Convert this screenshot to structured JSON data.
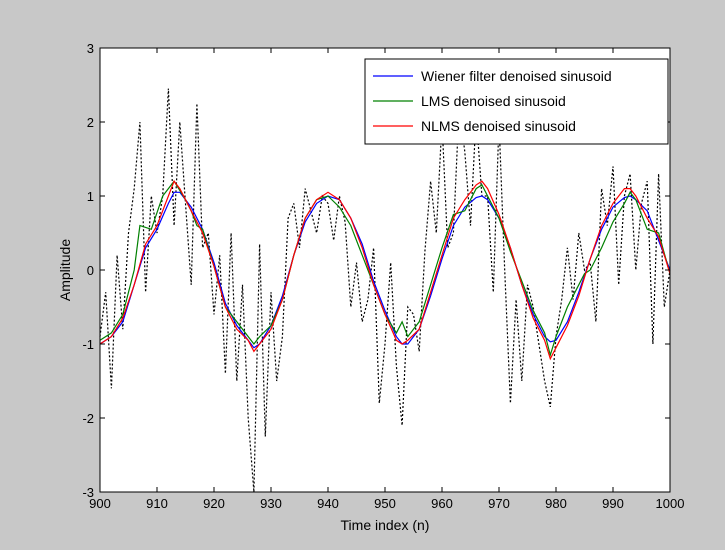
{
  "colors": {
    "figure_bg": "#c8c8c8",
    "axes_bg": "#ffffff",
    "noisy": "#000000",
    "wiener": "#0000ff",
    "lms": "#008000",
    "nlms": "#ff0000"
  },
  "chart_data": {
    "type": "line",
    "title": "",
    "xlabel": "Time index (n)",
    "ylabel": "Amplitude",
    "xlim": [
      900,
      1000
    ],
    "ylim": [
      -3,
      3
    ],
    "xticks": [
      900,
      910,
      920,
      930,
      940,
      950,
      960,
      970,
      980,
      990,
      1000
    ],
    "yticks": [
      -3,
      -2,
      -1,
      0,
      1,
      2,
      3
    ],
    "grid": false,
    "legend_position": "top-right",
    "series": [
      {
        "name": "Wiener filter denoised sinusoid",
        "color_key": "wiener",
        "style": "solid",
        "x": [
          900,
          902,
          904,
          906,
          908,
          910,
          912,
          913,
          914,
          916,
          918,
          920,
          922,
          924,
          926,
          927,
          928,
          930,
          932,
          934,
          936,
          938,
          940,
          942,
          944,
          946,
          948,
          950,
          952,
          953,
          954,
          956,
          958,
          960,
          962,
          964,
          966,
          967,
          968,
          970,
          972,
          974,
          976,
          978,
          979,
          980,
          982,
          984,
          986,
          988,
          990,
          992,
          993,
          994,
          996,
          998,
          1000
        ],
        "y": [
          -1.0,
          -0.9,
          -0.7,
          -0.2,
          0.3,
          0.55,
          0.9,
          1.05,
          1.05,
          0.85,
          0.55,
          0.1,
          -0.45,
          -0.75,
          -0.95,
          -1.05,
          -1.0,
          -0.75,
          -0.35,
          0.2,
          0.65,
          0.9,
          1.0,
          0.95,
          0.7,
          0.35,
          -0.15,
          -0.55,
          -0.9,
          -1.0,
          -1.0,
          -0.8,
          -0.35,
          0.15,
          0.6,
          0.85,
          0.98,
          1.0,
          0.95,
          0.7,
          0.3,
          -0.2,
          -0.6,
          -0.9,
          -0.97,
          -0.95,
          -0.7,
          -0.3,
          0.15,
          0.55,
          0.85,
          0.98,
          1.0,
          0.95,
          0.8,
          0.4,
          0.0
        ]
      },
      {
        "name": "LMS denoised sinusoid",
        "color_key": "lms",
        "style": "solid",
        "x": [
          900,
          902,
          904,
          906,
          907,
          909,
          911,
          913,
          915,
          916,
          917,
          918,
          920,
          922,
          924,
          926,
          927,
          928,
          930,
          932,
          934,
          936,
          938,
          940,
          942,
          944,
          946,
          948,
          950,
          952,
          953,
          954,
          956,
          958,
          960,
          962,
          964,
          966,
          967,
          968,
          970,
          972,
          974,
          976,
          978,
          979,
          980,
          982,
          984,
          985,
          986,
          988,
          990,
          992,
          993,
          994,
          996,
          998,
          1000
        ],
        "y": [
          -0.95,
          -0.85,
          -0.6,
          0.0,
          0.6,
          0.55,
          1.0,
          1.2,
          0.95,
          0.8,
          0.6,
          0.55,
          0.05,
          -0.5,
          -0.7,
          -0.9,
          -1.0,
          -0.9,
          -0.75,
          -0.4,
          0.2,
          0.7,
          0.95,
          1.0,
          0.85,
          0.6,
          0.2,
          -0.2,
          -0.6,
          -0.85,
          -0.7,
          -0.9,
          -0.7,
          -0.2,
          0.3,
          0.75,
          0.8,
          1.1,
          1.15,
          1.0,
          0.7,
          0.25,
          -0.15,
          -0.55,
          -0.85,
          -1.15,
          -0.9,
          -0.5,
          -0.2,
          -0.05,
          0.0,
          0.3,
          0.65,
          0.9,
          1.05,
          0.95,
          0.55,
          0.5,
          -0.05
        ]
      },
      {
        "name": "NLMS denoised sinusoid",
        "color_key": "nlms",
        "style": "solid",
        "x": [
          900,
          902,
          904,
          906,
          908,
          910,
          912,
          913,
          914,
          916,
          918,
          920,
          922,
          924,
          926,
          927,
          928,
          930,
          932,
          934,
          936,
          938,
          940,
          942,
          944,
          946,
          948,
          950,
          952,
          953,
          954,
          956,
          958,
          960,
          962,
          964,
          966,
          967,
          968,
          970,
          972,
          974,
          976,
          978,
          979,
          980,
          982,
          984,
          986,
          988,
          990,
          992,
          993,
          994,
          996,
          998,
          1000
        ],
        "y": [
          -1.0,
          -0.9,
          -0.65,
          -0.2,
          0.35,
          0.6,
          1.0,
          1.2,
          1.1,
          0.8,
          0.5,
          0.05,
          -0.5,
          -0.8,
          -0.95,
          -1.1,
          -1.0,
          -0.8,
          -0.4,
          0.2,
          0.7,
          0.95,
          1.05,
          0.95,
          0.7,
          0.3,
          -0.2,
          -0.6,
          -0.95,
          -1.0,
          -0.95,
          -0.8,
          -0.3,
          0.2,
          0.7,
          0.95,
          1.15,
          1.2,
          1.1,
          0.75,
          0.3,
          -0.2,
          -0.65,
          -0.95,
          -1.2,
          -1.05,
          -0.75,
          -0.35,
          0.15,
          0.6,
          0.9,
          1.1,
          1.1,
          1.0,
          0.7,
          0.45,
          -0.05
        ]
      },
      {
        "name": "",
        "color_key": "noisy",
        "style": "dotted",
        "x": [
          900,
          901,
          902,
          903,
          904,
          905,
          906,
          907,
          908,
          909,
          910,
          911,
          912,
          913,
          914,
          915,
          916,
          917,
          918,
          919,
          920,
          921,
          922,
          923,
          924,
          925,
          926,
          927,
          928,
          929,
          930,
          931,
          932,
          933,
          934,
          935,
          936,
          937,
          938,
          939,
          940,
          941,
          942,
          943,
          944,
          945,
          946,
          947,
          948,
          949,
          950,
          951,
          952,
          953,
          954,
          955,
          956,
          957,
          958,
          959,
          960,
          961,
          962,
          963,
          964,
          965,
          966,
          967,
          968,
          969,
          970,
          971,
          972,
          973,
          974,
          975,
          976,
          977,
          978,
          979,
          980,
          981,
          982,
          983,
          984,
          985,
          986,
          987,
          988,
          989,
          990,
          991,
          992,
          993,
          994,
          995,
          996,
          997,
          998,
          999,
          1000
        ],
        "y": [
          -0.9,
          -0.3,
          -1.6,
          0.2,
          -0.8,
          0.5,
          1.1,
          2.0,
          -0.3,
          1.0,
          0.5,
          1.0,
          2.45,
          0.6,
          2.0,
          0.9,
          -0.2,
          2.25,
          0.3,
          0.5,
          -0.6,
          0.2,
          -1.4,
          0.5,
          -1.5,
          -0.2,
          -2.0,
          -3.0,
          0.35,
          -2.25,
          -0.3,
          -1.5,
          -0.9,
          0.7,
          0.9,
          0.3,
          1.1,
          0.8,
          0.5,
          1.0,
          0.9,
          0.4,
          1.0,
          0.65,
          -0.5,
          0.1,
          -0.7,
          -0.4,
          0.3,
          -1.8,
          -1.0,
          0.1,
          -1.3,
          -2.1,
          -0.5,
          -0.6,
          -1.1,
          0.25,
          1.2,
          0.5,
          2.0,
          0.3,
          0.5,
          2.2,
          1.6,
          0.6,
          2.1,
          1.0,
          1.0,
          -0.3,
          2.0,
          0.0,
          -1.8,
          -0.4,
          -1.5,
          -0.2,
          -0.5,
          -1.0,
          -1.5,
          -1.85,
          -0.9,
          -0.4,
          0.3,
          -0.4,
          0.5,
          0.0,
          0.1,
          -0.7,
          1.1,
          0.6,
          1.4,
          -0.2,
          1.0,
          1.3,
          0.0,
          0.9,
          1.2,
          -1.0,
          1.3,
          -0.5,
          0.0
        ]
      }
    ]
  }
}
